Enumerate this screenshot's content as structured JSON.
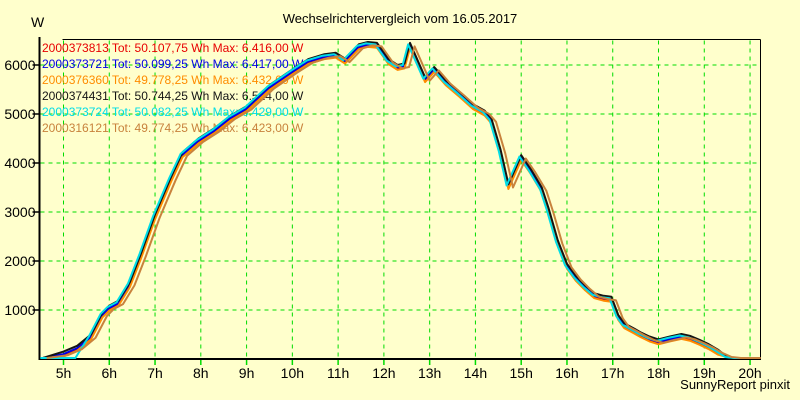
{
  "title": "Wechselrichtervergleich vom 16.05.2017",
  "y_axis_unit": "W",
  "footer": "SunnyReport pinxit",
  "colors": {
    "background": "#FFFFCC",
    "grid": "#00DC00",
    "axis": "#000000",
    "tick_x": "#00DC00",
    "tick_y": "#000000",
    "text": "#000000"
  },
  "legend": [
    {
      "label": "2000373813 Tot: 50.107,75 Wh Max: 6.416,00 W",
      "color": "#E80000"
    },
    {
      "label": "2000373721 Tot: 50.099,25 Wh Max: 6.417,00 W",
      "color": "#0000E6"
    },
    {
      "label": "2000376360 Tot: 49.778,25 Wh Max: 6.432,00 W",
      "color": "#FF8C00"
    },
    {
      "label": "2000374431 Tot: 50.744,25 Wh Max: 6.524,00 W",
      "color": "#141414"
    },
    {
      "label": "2000373724 Tot: 50.082,25 Wh Max: 6.429,00 W",
      "color": "#00DCE6"
    },
    {
      "label": "2000316121 Tot: 49.774,25 Wh Max: 6.423,00 W",
      "color": "#C8823C"
    }
  ],
  "chart_data": {
    "type": "line",
    "title": "Wechselrichtervergleich vom 16.05.2017",
    "xlabel": "",
    "ylabel": "W",
    "grid": true,
    "legend_position": "top-left-inside",
    "x_tick_hours": [
      5,
      6,
      7,
      8,
      9,
      10,
      11,
      12,
      13,
      14,
      15,
      16,
      17,
      18,
      19,
      20
    ],
    "x_tick_labels": [
      "5h",
      "6h",
      "7h",
      "8h",
      "9h",
      "10h",
      "11h",
      "12h",
      "13h",
      "14h",
      "15h",
      "16h",
      "17h",
      "18h",
      "19h",
      "20h"
    ],
    "y_ticks": [
      1000,
      2000,
      3000,
      4000,
      5000,
      6000
    ],
    "xlim_hours": [
      4.5,
      20.25
    ],
    "ylim": [
      0,
      6530
    ],
    "base_curve_points": [
      [
        4.55,
        0
      ],
      [
        5.0,
        80
      ],
      [
        5.3,
        200
      ],
      [
        5.6,
        430
      ],
      [
        5.85,
        880
      ],
      [
        6.0,
        1020
      ],
      [
        6.2,
        1120
      ],
      [
        6.45,
        1500
      ],
      [
        6.7,
        2100
      ],
      [
        7.0,
        2880
      ],
      [
        7.35,
        3650
      ],
      [
        7.6,
        4150
      ],
      [
        7.95,
        4430
      ],
      [
        8.3,
        4640
      ],
      [
        8.65,
        4900
      ],
      [
        9.0,
        5090
      ],
      [
        9.5,
        5520
      ],
      [
        10.0,
        5840
      ],
      [
        10.35,
        6050
      ],
      [
        10.7,
        6150
      ],
      [
        10.95,
        6180
      ],
      [
        11.15,
        6060
      ],
      [
        11.45,
        6350
      ],
      [
        11.65,
        6400
      ],
      [
        11.85,
        6380
      ],
      [
        12.1,
        6050
      ],
      [
        12.3,
        5930
      ],
      [
        12.45,
        5960
      ],
      [
        12.57,
        6380
      ],
      [
        12.75,
        6000
      ],
      [
        12.9,
        5680
      ],
      [
        13.1,
        5890
      ],
      [
        13.35,
        5620
      ],
      [
        13.65,
        5380
      ],
      [
        13.95,
        5130
      ],
      [
        14.2,
        5000
      ],
      [
        14.35,
        4840
      ],
      [
        14.55,
        4200
      ],
      [
        14.72,
        3500
      ],
      [
        15.0,
        4090
      ],
      [
        15.2,
        3820
      ],
      [
        15.45,
        3430
      ],
      [
        15.6,
        3000
      ],
      [
        15.8,
        2350
      ],
      [
        16.0,
        1870
      ],
      [
        16.2,
        1620
      ],
      [
        16.4,
        1430
      ],
      [
        16.6,
        1270
      ],
      [
        16.8,
        1220
      ],
      [
        16.97,
        1200
      ],
      [
        17.12,
        830
      ],
      [
        17.25,
        660
      ],
      [
        17.45,
        560
      ],
      [
        17.6,
        480
      ],
      [
        17.8,
        390
      ],
      [
        18.0,
        330
      ],
      [
        18.25,
        390
      ],
      [
        18.5,
        440
      ],
      [
        18.7,
        400
      ],
      [
        18.9,
        320
      ],
      [
        19.1,
        230
      ],
      [
        19.3,
        120
      ],
      [
        19.5,
        40
      ],
      [
        19.7,
        5
      ],
      [
        19.85,
        0
      ],
      [
        20.2,
        0
      ]
    ],
    "series": [
      {
        "id": "2000373813",
        "color": "#E80000",
        "tot_wh": "50.107,75",
        "max_w": "6.416,00",
        "dx_hours": 0,
        "dy_watts": 0
      },
      {
        "id": "2000373721",
        "color": "#0000E6",
        "tot_wh": "50.099,25",
        "max_w": "6.417,00",
        "dx_hours": 0,
        "dy_watts": 20
      },
      {
        "id": "2000376360",
        "color": "#FF8C00",
        "tot_wh": "49.778,25",
        "max_w": "6.432,00",
        "dx_hours": 0,
        "dy_watts": -30
      },
      {
        "id": "2000374431",
        "color": "#141414",
        "tot_wh": "50.744,25",
        "max_w": "6.524,00",
        "dx_hours": 0,
        "dy_watts": 70
      },
      {
        "id": "2000373724",
        "color": "#00DCE6",
        "tot_wh": "50.082,25",
        "max_w": "6.429,00",
        "dx_hours": -0.04,
        "dy_watts": 40,
        "zero_until_hours": 5.45
      },
      {
        "id": "2000316121",
        "color": "#C8823C",
        "tot_wh": "49.774,25",
        "max_w": "6.423,00",
        "dx_hours": 0.1,
        "dy_watts": 0
      }
    ]
  }
}
